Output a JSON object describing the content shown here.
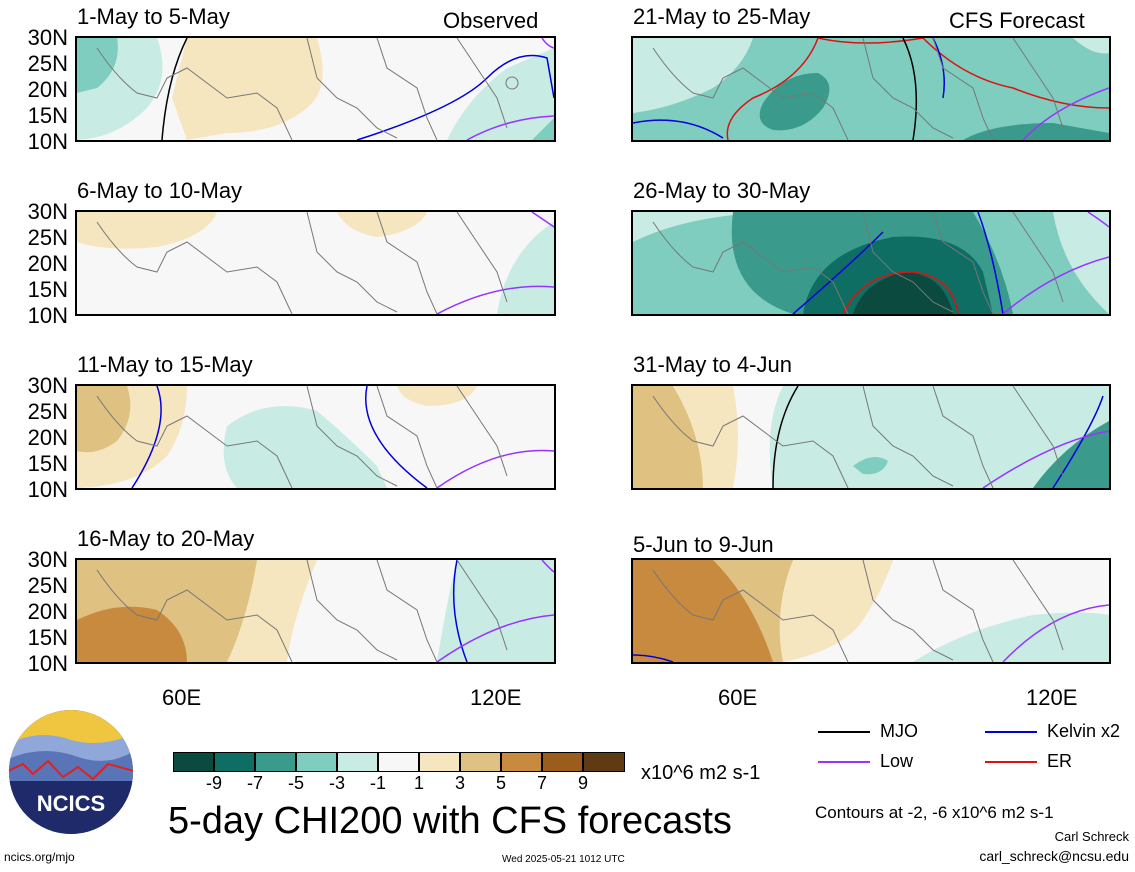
{
  "panels": [
    {
      "title": "1-May to 5-May",
      "tag": "Observed"
    },
    {
      "title": "21-May to 25-May",
      "tag": "CFS Forecast"
    },
    {
      "title": "6-May to 10-May",
      "tag": ""
    },
    {
      "title": "26-May to 30-May",
      "tag": ""
    },
    {
      "title": "11-May to 15-May",
      "tag": ""
    },
    {
      "title": "31-May to 4-Jun",
      "tag": ""
    },
    {
      "title": "16-May to 20-May",
      "tag": ""
    },
    {
      "title": "5-Jun to 9-Jun",
      "tag": ""
    }
  ],
  "lat_labels": [
    "30N",
    "25N",
    "20N",
    "15N",
    "10N"
  ],
  "lon_labels": [
    "60E",
    "120E"
  ],
  "colorbar": {
    "labels": [
      "-9",
      "-7",
      "-5",
      "-3",
      "-1",
      "1",
      "3",
      "5",
      "7",
      "9"
    ],
    "colors": [
      "#0b4b3f",
      "#0f6e63",
      "#3a9a8c",
      "#7fcdbf",
      "#c8ebe3",
      "#f7f7f7",
      "#f5e6c0",
      "#dfc182",
      "#c78a3f",
      "#9c5c1c",
      "#603a12"
    ],
    "units": "x10^6 m2 s-1"
  },
  "legend": {
    "mjo": {
      "label": "MJO",
      "color": "#000000"
    },
    "kelvin": {
      "label": "Kelvin x2",
      "color": "#0000dd"
    },
    "low": {
      "label": "Low",
      "color": "#9933ff"
    },
    "er": {
      "label": "ER",
      "color": "#dd1111"
    }
  },
  "contours_note": "Contours at -2, -6 x10^6 m2 s-1",
  "title": "5-day CHI200 with CFS forecasts",
  "logo_text": "NCICS",
  "website": "ncics.org/mjo",
  "timestamp": "Wed 2025-05-21 1012 UTC",
  "author": "Carl Schreck",
  "email": "carl_schreck@ncsu.edu"
}
